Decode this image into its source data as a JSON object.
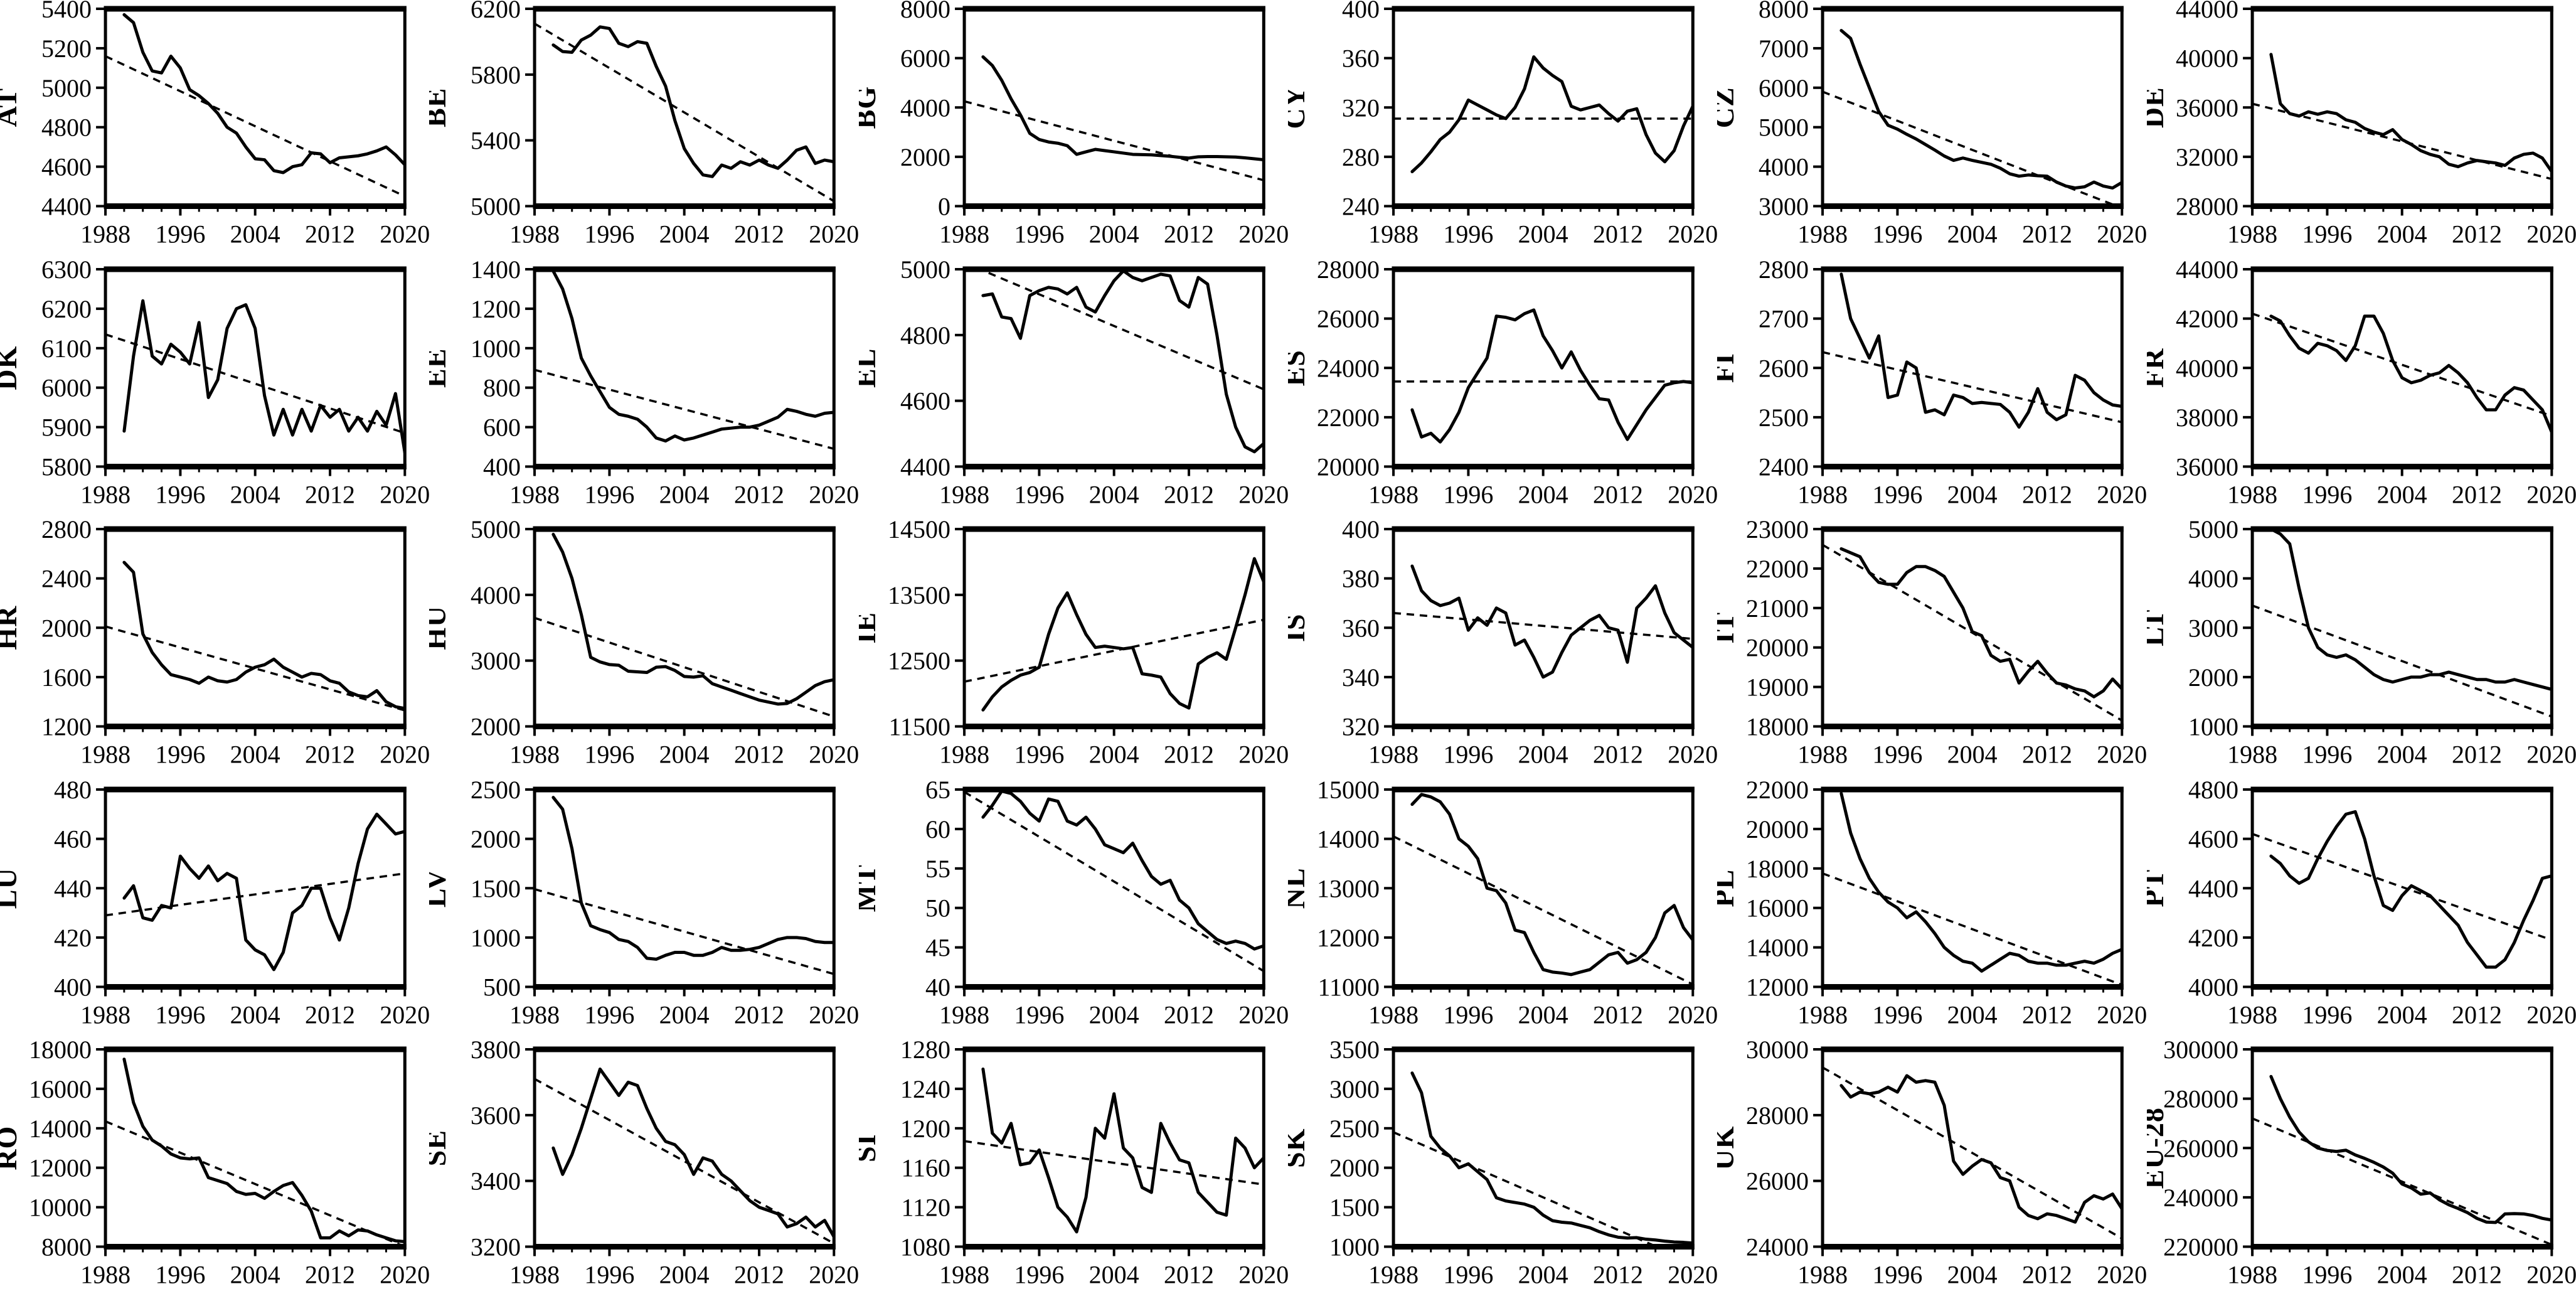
{
  "figure": {
    "background": "#ffffff",
    "line_color": "#000000",
    "trend_style": "dashed",
    "x_range": [
      1988,
      2020
    ],
    "x_major_ticks": [
      1988,
      1996,
      2004,
      2012,
      2020
    ],
    "x_minor_step": 2,
    "series_start_year": 1990,
    "columns": 6,
    "rows": 5
  },
  "chart_data": [
    {
      "type": "line",
      "code": "AT",
      "ylim": [
        4400,
        5400
      ],
      "ystep": 200,
      "trend": [
        5160,
        4450
      ],
      "values": [
        5370,
        5330,
        5180,
        5085,
        5075,
        5160,
        5100,
        4990,
        4960,
        4920,
        4870,
        4800,
        4770,
        4700,
        4640,
        4635,
        4580,
        4570,
        4600,
        4610,
        4670,
        4665,
        4620,
        4645,
        4650,
        4655,
        4665,
        4680,
        4700,
        4660,
        4610
      ]
    },
    {
      "type": "line",
      "code": "BE",
      "ylim": [
        5000,
        6200
      ],
      "ystep": 400,
      "trend": [
        6110,
        5030
      ],
      "values": [
        5980,
        5940,
        5935,
        6010,
        6040,
        6090,
        6080,
        5990,
        5970,
        6000,
        5990,
        5850,
        5730,
        5520,
        5350,
        5260,
        5190,
        5180,
        5250,
        5230,
        5270,
        5250,
        5280,
        5250,
        5230,
        5280,
        5340,
        5360,
        5260,
        5280,
        5270
      ]
    },
    {
      "type": "line",
      "code": "BG",
      "ylim": [
        0,
        8000
      ],
      "ystep": 2000,
      "trend": [
        4250,
        1050
      ],
      "values": [
        6050,
        5700,
        5100,
        4350,
        3700,
        2950,
        2700,
        2600,
        2550,
        2450,
        2100,
        2200,
        2300,
        2250,
        2200,
        2150,
        2100,
        2090,
        2080,
        2050,
        2020,
        1980,
        1950,
        2000,
        2010,
        2010,
        2000,
        1990,
        1960,
        1920,
        1880
      ]
    },
    {
      "type": "line",
      "code": "CY",
      "ylim": [
        240,
        400
      ],
      "ystep": 40,
      "trend": [
        311,
        311
      ],
      "values": [
        268,
        275,
        284,
        294,
        300,
        310,
        326,
        322,
        318,
        314,
        311,
        320,
        335,
        361,
        352,
        346,
        341,
        321,
        318,
        320,
        322,
        315,
        309,
        317,
        319,
        298,
        283,
        276,
        285,
        305,
        321
      ]
    },
    {
      "type": "line",
      "code": "CZ",
      "ylim": [
        3000,
        8000
      ],
      "ystep": 1000,
      "trend": [
        5900,
        2950
      ],
      "values": [
        7450,
        7250,
        6600,
        6000,
        5400,
        5050,
        4950,
        4820,
        4700,
        4560,
        4420,
        4270,
        4160,
        4220,
        4160,
        4110,
        4060,
        3960,
        3820,
        3760,
        3790,
        3770,
        3760,
        3610,
        3510,
        3460,
        3490,
        3610,
        3510,
        3460,
        3600
      ]
    },
    {
      "type": "line",
      "code": "DE",
      "ylim": [
        28000,
        44000
      ],
      "ystep": 4000,
      "trend": [
        36300,
        30200
      ],
      "values": [
        40300,
        36300,
        35500,
        35300,
        35650,
        35450,
        35650,
        35500,
        35000,
        34800,
        34300,
        34000,
        33800,
        34200,
        33400,
        33000,
        32500,
        32200,
        32000,
        31400,
        31200,
        31500,
        31700,
        31600,
        31500,
        31300,
        31900,
        32200,
        32300,
        31900,
        30800
      ]
    },
    {
      "type": "line",
      "code": "DK",
      "ylim": [
        5800,
        6300
      ],
      "ystep": 100,
      "trend": [
        6135,
        5885
      ],
      "values": [
        5890,
        6080,
        6220,
        6080,
        6060,
        6110,
        6090,
        6060,
        6165,
        5975,
        6020,
        6150,
        6200,
        6210,
        6150,
        5980,
        5880,
        5945,
        5880,
        5945,
        5890,
        5955,
        5925,
        5945,
        5890,
        5925,
        5890,
        5940,
        5905,
        5985,
        5835
      ]
    },
    {
      "type": "line",
      "code": "EE",
      "ylim": [
        400,
        1400
      ],
      "ystep": 200,
      "trend": [
        890,
        490
      ],
      "values": [
        1390,
        1300,
        1150,
        950,
        860,
        780,
        700,
        665,
        655,
        640,
        600,
        545,
        530,
        555,
        535,
        545,
        560,
        575,
        590,
        595,
        600,
        600,
        610,
        630,
        650,
        690,
        680,
        665,
        655,
        670,
        675
      ]
    },
    {
      "type": "line",
      "code": "EL",
      "ylim": [
        4400,
        5000
      ],
      "ystep": 200,
      "trend": [
        5020,
        4635
      ],
      "values": [
        4920,
        4925,
        4855,
        4850,
        4790,
        4920,
        4935,
        4945,
        4940,
        4925,
        4945,
        4885,
        4870,
        4920,
        4965,
        4995,
        4975,
        4965,
        4975,
        4985,
        4980,
        4905,
        4885,
        4975,
        4955,
        4800,
        4620,
        4520,
        4460,
        4445,
        4470
      ]
    },
    {
      "type": "line",
      "code": "ES",
      "ylim": [
        20000,
        28000
      ],
      "ystep": 2000,
      "trend": [
        23450,
        23450
      ],
      "values": [
        22300,
        21200,
        21350,
        21000,
        21500,
        22200,
        23200,
        23800,
        24400,
        26100,
        26050,
        25950,
        26200,
        26350,
        25300,
        24700,
        24000,
        24650,
        23900,
        23300,
        22750,
        22700,
        21800,
        21100,
        21700,
        22300,
        22800,
        23300,
        23400,
        23450,
        23400
      ]
    },
    {
      "type": "line",
      "code": "FI",
      "ylim": [
        2400,
        2800
      ],
      "ystep": 100,
      "trend": [
        2632,
        2490
      ],
      "values": [
        2790,
        2700,
        2660,
        2620,
        2665,
        2540,
        2545,
        2612,
        2600,
        2510,
        2515,
        2505,
        2545,
        2540,
        2528,
        2530,
        2528,
        2526,
        2510,
        2480,
        2510,
        2558,
        2510,
        2495,
        2505,
        2585,
        2575,
        2550,
        2535,
        2525,
        2522
      ]
    },
    {
      "type": "line",
      "code": "FR",
      "ylim": [
        36000,
        44000
      ],
      "ystep": 2000,
      "trend": [
        42200,
        38050
      ],
      "values": [
        42100,
        41900,
        41300,
        40800,
        40600,
        41000,
        40900,
        40700,
        40300,
        40900,
        42100,
        42100,
        41400,
        40300,
        39600,
        39400,
        39500,
        39700,
        39800,
        40100,
        39800,
        39400,
        38800,
        38300,
        38300,
        38900,
        39200,
        39100,
        38700,
        38300,
        37400
      ]
    },
    {
      "type": "line",
      "code": "HR",
      "ylim": [
        1200,
        2800
      ],
      "ystep": 400,
      "trend": [
        2010,
        1330
      ],
      "values": [
        2530,
        2450,
        1950,
        1800,
        1700,
        1620,
        1600,
        1580,
        1550,
        1600,
        1570,
        1560,
        1580,
        1640,
        1680,
        1700,
        1745,
        1680,
        1640,
        1600,
        1630,
        1620,
        1570,
        1550,
        1480,
        1450,
        1440,
        1490,
        1400,
        1360,
        1345
      ]
    },
    {
      "type": "line",
      "code": "HU",
      "ylim": [
        2000,
        5000
      ],
      "ystep": 1000,
      "trend": [
        3650,
        2150
      ],
      "values": [
        4920,
        4650,
        4250,
        3700,
        3050,
        2980,
        2940,
        2930,
        2840,
        2830,
        2820,
        2900,
        2910,
        2850,
        2760,
        2750,
        2770,
        2650,
        2600,
        2550,
        2500,
        2450,
        2400,
        2370,
        2340,
        2350,
        2420,
        2520,
        2620,
        2680,
        2710
      ]
    },
    {
      "type": "line",
      "code": "IE",
      "ylim": [
        11500,
        14500
      ],
      "ystep": 1000,
      "trend": [
        12180,
        13120
      ],
      "values": [
        11750,
        11950,
        12100,
        12200,
        12280,
        12320,
        12400,
        12900,
        13300,
        13530,
        13200,
        12900,
        12700,
        12720,
        12700,
        12680,
        12700,
        12300,
        12280,
        12250,
        12000,
        11850,
        11780,
        12450,
        12550,
        12620,
        12520,
        13000,
        13500,
        14050,
        13700
      ]
    },
    {
      "type": "line",
      "code": "IS",
      "ylim": [
        320,
        400
      ],
      "ystep": 20,
      "trend": [
        366,
        355.5
      ],
      "values": [
        385,
        375,
        371,
        369,
        370,
        372,
        359,
        364,
        361,
        368,
        366,
        353,
        355,
        348,
        340,
        342,
        350,
        357,
        360,
        363,
        365,
        360,
        359,
        346,
        368,
        372,
        377,
        366,
        358,
        355,
        352
      ]
    },
    {
      "type": "line",
      "code": "IT",
      "ylim": [
        18000,
        23000
      ],
      "ystep": 1000,
      "trend": [
        22600,
        18150
      ],
      "values": [
        22500,
        22400,
        22300,
        21900,
        21650,
        21600,
        21600,
        21900,
        22050,
        22050,
        21950,
        21800,
        21400,
        21000,
        20400,
        20300,
        19800,
        19650,
        19700,
        19100,
        19400,
        19650,
        19350,
        19100,
        19050,
        18950,
        18900,
        18750,
        18900,
        19200,
        18950
      ]
    },
    {
      "type": "line",
      "code": "LT",
      "ylim": [
        1000,
        5000
      ],
      "ystep": 1000,
      "trend": [
        3450,
        1200
      ],
      "values": [
        5000,
        4900,
        4700,
        3800,
        3000,
        2600,
        2450,
        2400,
        2450,
        2350,
        2200,
        2050,
        1950,
        1900,
        1950,
        2000,
        2000,
        2050,
        2050,
        2100,
        2050,
        2000,
        1950,
        1950,
        1900,
        1900,
        1950,
        1900,
        1850,
        1800,
        1750
      ]
    },
    {
      "type": "line",
      "code": "LU",
      "ylim": [
        400,
        480
      ],
      "ystep": 20,
      "trend": [
        429,
        446
      ],
      "values": [
        436,
        441,
        428,
        427,
        433,
        432,
        453,
        448,
        444,
        449,
        443,
        446,
        444,
        419,
        415,
        413,
        407,
        414,
        430,
        433,
        440,
        440,
        428,
        419,
        432,
        450,
        464,
        470,
        466,
        462,
        463
      ]
    },
    {
      "type": "line",
      "code": "LV",
      "ylim": [
        500,
        2500
      ],
      "ystep": 500,
      "trend": [
        1490,
        630
      ],
      "values": [
        2420,
        2300,
        1900,
        1350,
        1120,
        1080,
        1050,
        980,
        960,
        900,
        790,
        780,
        820,
        850,
        850,
        820,
        820,
        850,
        900,
        870,
        870,
        880,
        900,
        940,
        980,
        1000,
        1000,
        990,
        960,
        950,
        950
      ]
    },
    {
      "type": "line",
      "code": "MT",
      "ylim": [
        40,
        65
      ],
      "ystep": 5,
      "trend": [
        64.7,
        42
      ],
      "values": [
        61.5,
        63,
        64.8,
        64.5,
        63.5,
        62,
        61,
        63.8,
        63.5,
        61,
        60.5,
        61.5,
        60,
        58,
        57.5,
        57,
        58.2,
        56,
        54,
        53,
        53.5,
        51,
        50,
        48,
        47,
        46,
        45.5,
        45.8,
        45.5,
        44.8,
        45.2
      ]
    },
    {
      "type": "line",
      "code": "NL",
      "ylim": [
        11000,
        15000
      ],
      "ystep": 1000,
      "trend": [
        14050,
        11050
      ],
      "values": [
        14700,
        14900,
        14850,
        14750,
        14500,
        14000,
        13850,
        13600,
        13000,
        12950,
        12700,
        12150,
        12100,
        11700,
        11350,
        11300,
        11280,
        11250,
        11300,
        11350,
        11500,
        11650,
        11700,
        11480,
        11550,
        11700,
        12000,
        12500,
        12650,
        12200,
        11950
      ]
    },
    {
      "type": "line",
      "code": "PL",
      "ylim": [
        12000,
        22000
      ],
      "ystep": 2000,
      "trend": [
        17750,
        12100
      ],
      "values": [
        21800,
        19800,
        18500,
        17500,
        16800,
        16300,
        16000,
        15500,
        15800,
        15300,
        14700,
        14000,
        13600,
        13300,
        13200,
        12800,
        13100,
        13400,
        13700,
        13600,
        13300,
        13200,
        13200,
        13100,
        13100,
        13200,
        13300,
        13200,
        13400,
        13700,
        13900
      ]
    },
    {
      "type": "line",
      "code": "PT",
      "ylim": [
        4000,
        4800
      ],
      "ystep": 200,
      "trend": [
        4620,
        4190
      ],
      "values": [
        4530,
        4500,
        4450,
        4420,
        4440,
        4520,
        4590,
        4650,
        4700,
        4710,
        4600,
        4450,
        4330,
        4310,
        4370,
        4410,
        4390,
        4370,
        4330,
        4290,
        4250,
        4180,
        4130,
        4080,
        4080,
        4110,
        4180,
        4270,
        4350,
        4440,
        4450
      ]
    },
    {
      "type": "line",
      "code": "RO",
      "ylim": [
        8000,
        18000
      ],
      "ystep": 2000,
      "trend": [
        14350,
        8000
      ],
      "values": [
        17500,
        15300,
        14100,
        13400,
        13100,
        12700,
        12500,
        12450,
        12500,
        11500,
        11350,
        11200,
        10800,
        10650,
        10700,
        10450,
        10800,
        11100,
        11250,
        10600,
        9800,
        8450,
        8450,
        8800,
        8550,
        8850,
        8800,
        8600,
        8450,
        8300,
        8250
      ]
    },
    {
      "type": "line",
      "code": "SE",
      "ylim": [
        3200,
        3800
      ],
      "ystep": 200,
      "trend": [
        3710,
        3210
      ],
      "values": [
        3500,
        3420,
        3480,
        3560,
        3650,
        3740,
        3700,
        3660,
        3700,
        3690,
        3620,
        3560,
        3520,
        3510,
        3480,
        3420,
        3470,
        3460,
        3420,
        3400,
        3370,
        3340,
        3320,
        3310,
        3300,
        3260,
        3270,
        3290,
        3260,
        3280,
        3230
      ]
    },
    {
      "type": "line",
      "code": "SI",
      "ylim": [
        1080,
        1280
      ],
      "ystep": 40,
      "trend": [
        1187,
        1143
      ],
      "values": [
        1260,
        1195,
        1185,
        1205,
        1163,
        1165,
        1178,
        1150,
        1120,
        1110,
        1095,
        1130,
        1200,
        1190,
        1235,
        1180,
        1170,
        1140,
        1135,
        1205,
        1185,
        1168,
        1165,
        1135,
        1125,
        1115,
        1112,
        1190,
        1180,
        1160,
        1170
      ]
    },
    {
      "type": "line",
      "code": "SK",
      "ylim": [
        1000,
        3500
      ],
      "ystep": 500,
      "trend": [
        2450,
        800
      ],
      "values": [
        3200,
        2950,
        2400,
        2250,
        2150,
        2000,
        2050,
        1950,
        1850,
        1620,
        1580,
        1560,
        1540,
        1500,
        1400,
        1330,
        1310,
        1300,
        1270,
        1240,
        1190,
        1150,
        1120,
        1110,
        1115,
        1095,
        1085,
        1070,
        1060,
        1055,
        1045
      ]
    },
    {
      "type": "line",
      "code": "UK",
      "ylim": [
        24000,
        30000
      ],
      "ystep": 2000,
      "trend": [
        29450,
        24250
      ],
      "values": [
        28900,
        28550,
        28700,
        28650,
        28700,
        28850,
        28700,
        29200,
        29000,
        29050,
        29000,
        28300,
        26600,
        26200,
        26450,
        26650,
        26550,
        26100,
        26000,
        25200,
        24950,
        24850,
        25000,
        24950,
        24850,
        24750,
        25350,
        25550,
        25450,
        25600,
        25150
      ]
    },
    {
      "type": "line",
      "code": "EU-28",
      "ylim": [
        220000,
        300000
      ],
      "ystep": 20000,
      "trend": [
        272000,
        220800
      ],
      "values": [
        289000,
        280000,
        272500,
        266500,
        262500,
        260000,
        259000,
        258600,
        259100,
        257200,
        255800,
        254200,
        252300,
        249800,
        245400,
        243800,
        241300,
        241800,
        239000,
        237000,
        235500,
        233800,
        231500,
        230000,
        229800,
        233300,
        233400,
        233300,
        232600,
        231500,
        230800
      ]
    }
  ]
}
